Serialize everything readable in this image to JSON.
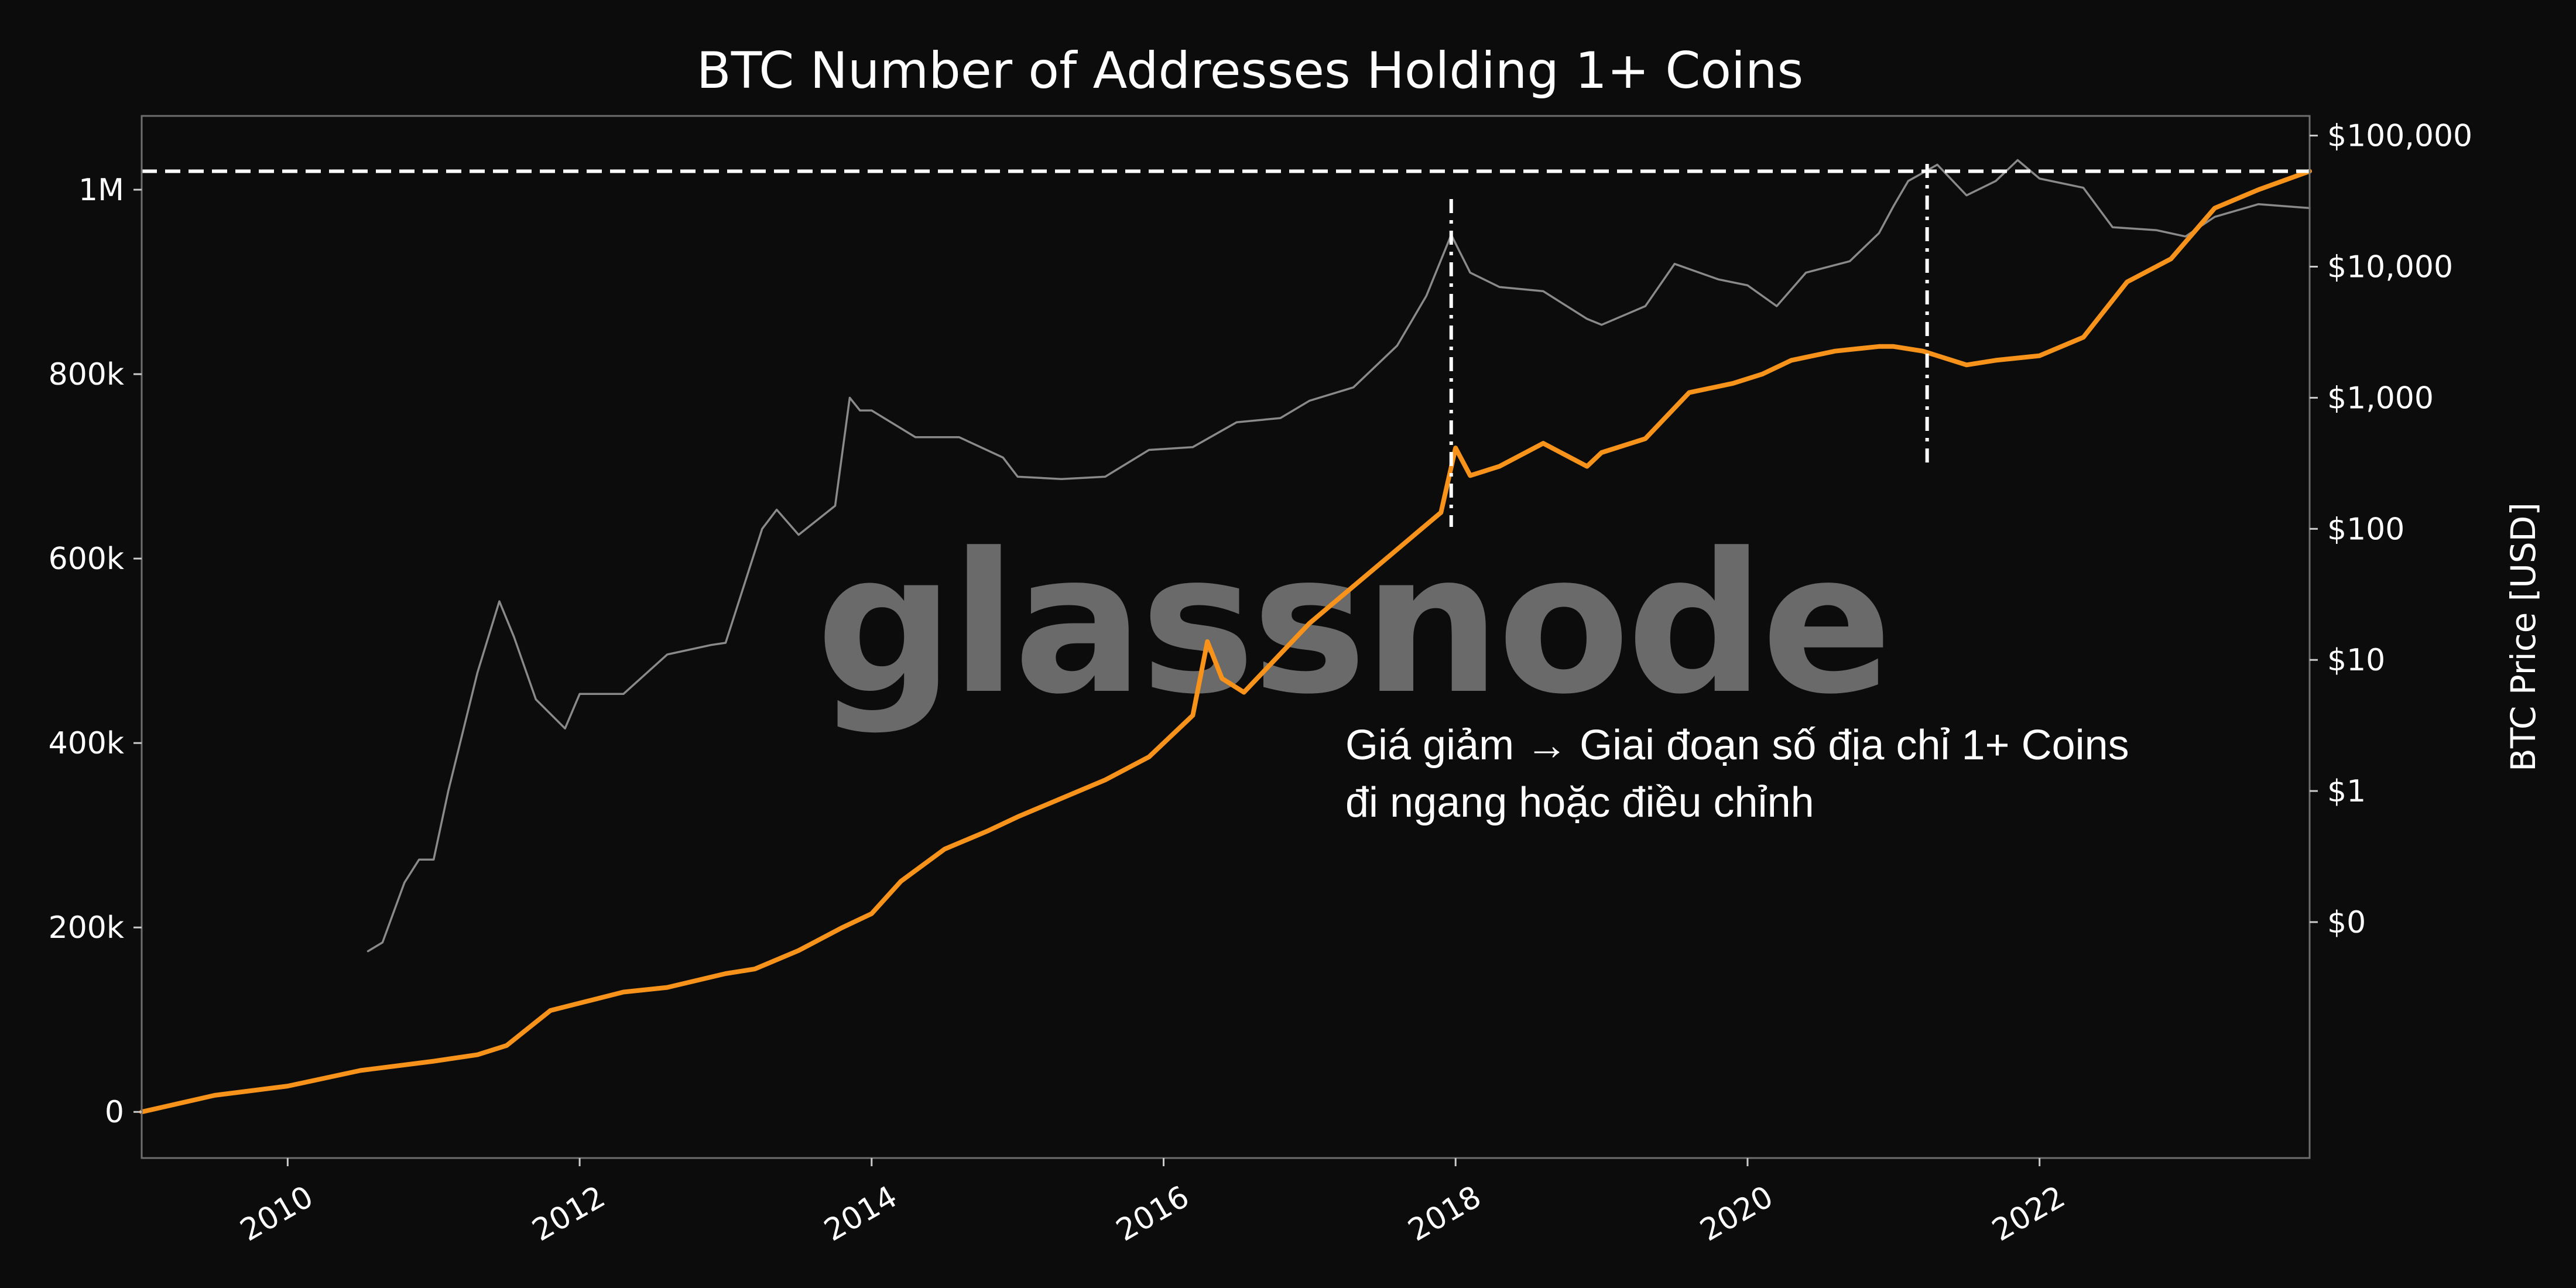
{
  "chart_data": {
    "type": "line",
    "title": "BTC Number of Addresses Holding 1+ Coins",
    "xlabel": "",
    "ylabel_left": "",
    "ylabel_right": "BTC Price [USD]",
    "x_ticks": [
      "2010",
      "2012",
      "2014",
      "2016",
      "2018",
      "2020",
      "2022"
    ],
    "y_left_ticks": [
      "0",
      "200k",
      "400k",
      "600k",
      "800k",
      "1M"
    ],
    "y_right_ticks": [
      "$0",
      "$1",
      "$10",
      "$100",
      "$1,000",
      "$10,000",
      "$100,000"
    ],
    "xlim": [
      2009.0,
      2023.85
    ],
    "ylim_left": [
      -50000,
      1080000
    ],
    "ylim_right_log10": [
      -2.8,
      5.15
    ],
    "grid": false,
    "series": [
      {
        "color": "#f7931a",
        "axis": "left",
        "x": [
          2009.0,
          2009.5,
          2010.0,
          2010.5,
          2011.0,
          2011.3,
          2011.5,
          2011.8,
          2012.0,
          2012.3,
          2012.6,
          2013.0,
          2013.2,
          2013.5,
          2013.8,
          2014.0,
          2014.2,
          2014.5,
          2014.8,
          2015.0,
          2015.3,
          2015.6,
          2015.9,
          2016.2,
          2016.3,
          2016.4,
          2016.55,
          2016.7,
          2017.0,
          2017.3,
          2017.6,
          2017.9,
          2018.0,
          2018.1,
          2018.3,
          2018.6,
          2018.9,
          2019.0,
          2019.3,
          2019.6,
          2019.9,
          2020.1,
          2020.3,
          2020.6,
          2020.9,
          2021.0,
          2021.2,
          2021.5,
          2021.7,
          2022.0,
          2022.3,
          2022.6,
          2022.9,
          2023.2,
          2023.5,
          2023.85
        ],
        "y": [
          0,
          18000,
          28000,
          45000,
          55000,
          62000,
          72000,
          110000,
          118000,
          130000,
          135000,
          150000,
          155000,
          175000,
          200000,
          215000,
          250000,
          285000,
          305000,
          320000,
          340000,
          360000,
          385000,
          430000,
          510000,
          470000,
          455000,
          480000,
          530000,
          570000,
          610000,
          650000,
          720000,
          690000,
          700000,
          725000,
          700000,
          715000,
          730000,
          780000,
          790000,
          800000,
          815000,
          825000,
          830000,
          830000,
          825000,
          810000,
          815000,
          820000,
          840000,
          900000,
          925000,
          980000,
          1000000,
          1020000
        ]
      },
      {
        "color": "#8a8a8a",
        "axis": "right",
        "x": [
          2010.55,
          2010.65,
          2010.8,
          2010.9,
          2011.0,
          2011.1,
          2011.3,
          2011.45,
          2011.55,
          2011.7,
          2011.9,
          2012.0,
          2012.3,
          2012.6,
          2012.9,
          2013.0,
          2013.25,
          2013.35,
          2013.5,
          2013.75,
          2013.85,
          2013.92,
          2014.0,
          2014.3,
          2014.6,
          2014.9,
          2015.0,
          2015.3,
          2015.6,
          2015.9,
          2016.2,
          2016.5,
          2016.8,
          2017.0,
          2017.3,
          2017.6,
          2017.8,
          2017.97,
          2018.1,
          2018.3,
          2018.6,
          2018.9,
          2019.0,
          2019.3,
          2019.5,
          2019.8,
          2020.0,
          2020.2,
          2020.4,
          2020.7,
          2020.9,
          2021.0,
          2021.1,
          2021.3,
          2021.5,
          2021.7,
          2021.85,
          2022.0,
          2022.3,
          2022.5,
          2022.8,
          2023.0,
          2023.2,
          2023.5,
          2023.85
        ],
        "y": [
          0.06,
          0.07,
          0.2,
          0.3,
          0.3,
          1.0,
          8.0,
          28.0,
          15.0,
          5.0,
          3.0,
          5.5,
          5.5,
          11.0,
          13.0,
          13.5,
          100.0,
          140.0,
          90.0,
          150.0,
          1000.0,
          800.0,
          800.0,
          500.0,
          500.0,
          350.0,
          250.0,
          240.0,
          250.0,
          400.0,
          420.0,
          650.0,
          700.0,
          950.0,
          1200.0,
          2500.0,
          6000.0,
          17500.0,
          9000.0,
          7000.0,
          6500.0,
          4000.0,
          3600.0,
          5000.0,
          10500.0,
          8000.0,
          7200.0,
          5000.0,
          9000.0,
          11000.0,
          18000.0,
          29000.0,
          45000.0,
          60000.0,
          35000.0,
          45000.0,
          65000.0,
          47000.0,
          40000.0,
          20000.0,
          19000.0,
          17000.0,
          24000.0,
          30000.0,
          28000.0
        ]
      }
    ],
    "annotations": {
      "hline_value": 1020000,
      "vlines_x": [
        2017.97,
        2021.23
      ],
      "text_lines": [
        "Giá giảm → Giai đoạn số địa chỉ 1+ Coins",
        "đi ngang hoặc điều chỉnh"
      ]
    }
  },
  "watermark": "glassnode"
}
